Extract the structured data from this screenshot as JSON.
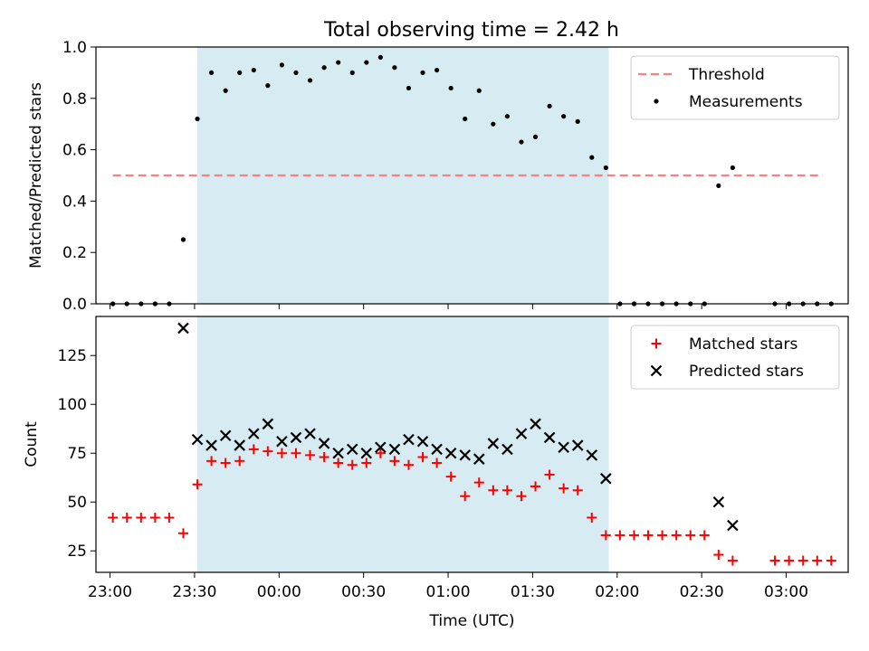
{
  "title": "Total observing time = 2.42 h",
  "chart_data": [
    {
      "type": "scatter",
      "ylabel": "Matched/Predicted stars",
      "xlabel": "",
      "xlim": [
        "22:55",
        "03:22"
      ],
      "ylim": [
        0,
        1.0
      ],
      "yticks": [
        "0.0",
        "0.2",
        "0.4",
        "0.6",
        "0.8",
        "1.0"
      ],
      "observing_window": [
        "23:31",
        "01:57"
      ],
      "legend_position": "top-right",
      "threshold": {
        "name": "Threshold",
        "value": 0.5,
        "x_range": [
          "23:01",
          "03:13"
        ],
        "color": "#ff7f7f"
      },
      "series": [
        {
          "name": "Measurements",
          "color": "#000000",
          "points": [
            [
              "23:01",
              0
            ],
            [
              "23:06",
              0
            ],
            [
              "23:11",
              0
            ],
            [
              "23:16",
              0
            ],
            [
              "23:21",
              0
            ],
            [
              "23:26",
              0.25
            ],
            [
              "23:31",
              0.72
            ],
            [
              "23:36",
              0.9
            ],
            [
              "23:41",
              0.83
            ],
            [
              "23:46",
              0.9
            ],
            [
              "23:51",
              0.91
            ],
            [
              "23:56",
              0.85
            ],
            [
              "00:01",
              0.93
            ],
            [
              "00:06",
              0.9
            ],
            [
              "00:11",
              0.87
            ],
            [
              "00:16",
              0.92
            ],
            [
              "00:21",
              0.94
            ],
            [
              "00:26",
              0.9
            ],
            [
              "00:31",
              0.94
            ],
            [
              "00:36",
              0.96
            ],
            [
              "00:41",
              0.92
            ],
            [
              "00:46",
              0.84
            ],
            [
              "00:51",
              0.9
            ],
            [
              "00:56",
              0.91
            ],
            [
              "01:01",
              0.84
            ],
            [
              "01:06",
              0.72
            ],
            [
              "01:11",
              0.83
            ],
            [
              "01:16",
              0.7
            ],
            [
              "01:21",
              0.73
            ],
            [
              "01:26",
              0.63
            ],
            [
              "01:31",
              0.65
            ],
            [
              "01:36",
              0.77
            ],
            [
              "01:41",
              0.73
            ],
            [
              "01:46",
              0.71
            ],
            [
              "01:51",
              0.57
            ],
            [
              "01:56",
              0.53
            ],
            [
              "02:01",
              0
            ],
            [
              "02:06",
              0
            ],
            [
              "02:11",
              0
            ],
            [
              "02:16",
              0
            ],
            [
              "02:21",
              0
            ],
            [
              "02:26",
              0
            ],
            [
              "02:31",
              0
            ],
            [
              "02:36",
              0.46
            ],
            [
              "02:41",
              0.53
            ],
            [
              "02:56",
              0
            ],
            [
              "03:01",
              0
            ],
            [
              "03:06",
              0
            ],
            [
              "03:11",
              0
            ],
            [
              "03:16",
              0
            ]
          ]
        }
      ]
    },
    {
      "type": "scatter",
      "ylabel": "Count",
      "xlabel": "Time (UTC)",
      "xlim": [
        "22:55",
        "03:22"
      ],
      "ylim": [
        14,
        145
      ],
      "yticks": [
        "25",
        "50",
        "75",
        "100",
        "125"
      ],
      "xticks": [
        "23:00",
        "23:30",
        "00:00",
        "00:30",
        "01:00",
        "01:30",
        "02:00",
        "02:30",
        "03:00"
      ],
      "observing_window": [
        "23:31",
        "01:57"
      ],
      "legend_position": "top-right",
      "series": [
        {
          "name": "Matched stars",
          "marker": "+",
          "color": "#ff0000",
          "points": [
            [
              "23:01",
              42
            ],
            [
              "23:06",
              42
            ],
            [
              "23:11",
              42
            ],
            [
              "23:16",
              42
            ],
            [
              "23:21",
              42
            ],
            [
              "23:26",
              34
            ],
            [
              "23:31",
              59
            ],
            [
              "23:36",
              71
            ],
            [
              "23:41",
              70
            ],
            [
              "23:46",
              71
            ],
            [
              "23:51",
              77
            ],
            [
              "23:56",
              76
            ],
            [
              "00:01",
              75
            ],
            [
              "00:06",
              75
            ],
            [
              "00:11",
              74
            ],
            [
              "00:16",
              73
            ],
            [
              "00:21",
              70
            ],
            [
              "00:26",
              69
            ],
            [
              "00:31",
              70
            ],
            [
              "00:36",
              75
            ],
            [
              "00:41",
              71
            ],
            [
              "00:46",
              69
            ],
            [
              "00:51",
              73
            ],
            [
              "00:56",
              70
            ],
            [
              "01:01",
              63
            ],
            [
              "01:06",
              53
            ],
            [
              "01:11",
              60
            ],
            [
              "01:16",
              56
            ],
            [
              "01:21",
              56
            ],
            [
              "01:26",
              53
            ],
            [
              "01:31",
              58
            ],
            [
              "01:36",
              64
            ],
            [
              "01:41",
              57
            ],
            [
              "01:46",
              56
            ],
            [
              "01:51",
              42
            ],
            [
              "01:56",
              33
            ],
            [
              "02:01",
              33
            ],
            [
              "02:06",
              33
            ],
            [
              "02:11",
              33
            ],
            [
              "02:16",
              33
            ],
            [
              "02:21",
              33
            ],
            [
              "02:26",
              33
            ],
            [
              "02:31",
              33
            ],
            [
              "02:36",
              23
            ],
            [
              "02:41",
              20
            ],
            [
              "02:56",
              20
            ],
            [
              "03:01",
              20
            ],
            [
              "03:06",
              20
            ],
            [
              "03:11",
              20
            ],
            [
              "03:16",
              20
            ]
          ]
        },
        {
          "name": "Predicted stars",
          "marker": "x",
          "color": "#000000",
          "points": [
            [
              "23:26",
              139
            ],
            [
              "23:31",
              82
            ],
            [
              "23:36",
              79
            ],
            [
              "23:41",
              84
            ],
            [
              "23:46",
              79
            ],
            [
              "23:51",
              85
            ],
            [
              "23:56",
              90
            ],
            [
              "00:01",
              81
            ],
            [
              "00:06",
              83
            ],
            [
              "00:11",
              85
            ],
            [
              "00:16",
              80
            ],
            [
              "00:21",
              75
            ],
            [
              "00:26",
              77
            ],
            [
              "00:31",
              75
            ],
            [
              "00:36",
              78
            ],
            [
              "00:41",
              77
            ],
            [
              "00:46",
              82
            ],
            [
              "00:51",
              81
            ],
            [
              "00:56",
              77
            ],
            [
              "01:01",
              75
            ],
            [
              "01:06",
              74
            ],
            [
              "01:11",
              72
            ],
            [
              "01:16",
              80
            ],
            [
              "01:21",
              77
            ],
            [
              "01:26",
              85
            ],
            [
              "01:31",
              90
            ],
            [
              "01:36",
              83
            ],
            [
              "01:41",
              78
            ],
            [
              "01:46",
              79
            ],
            [
              "01:51",
              74
            ],
            [
              "01:56",
              62
            ],
            [
              "02:36",
              50
            ],
            [
              "02:41",
              38
            ]
          ]
        }
      ]
    }
  ]
}
